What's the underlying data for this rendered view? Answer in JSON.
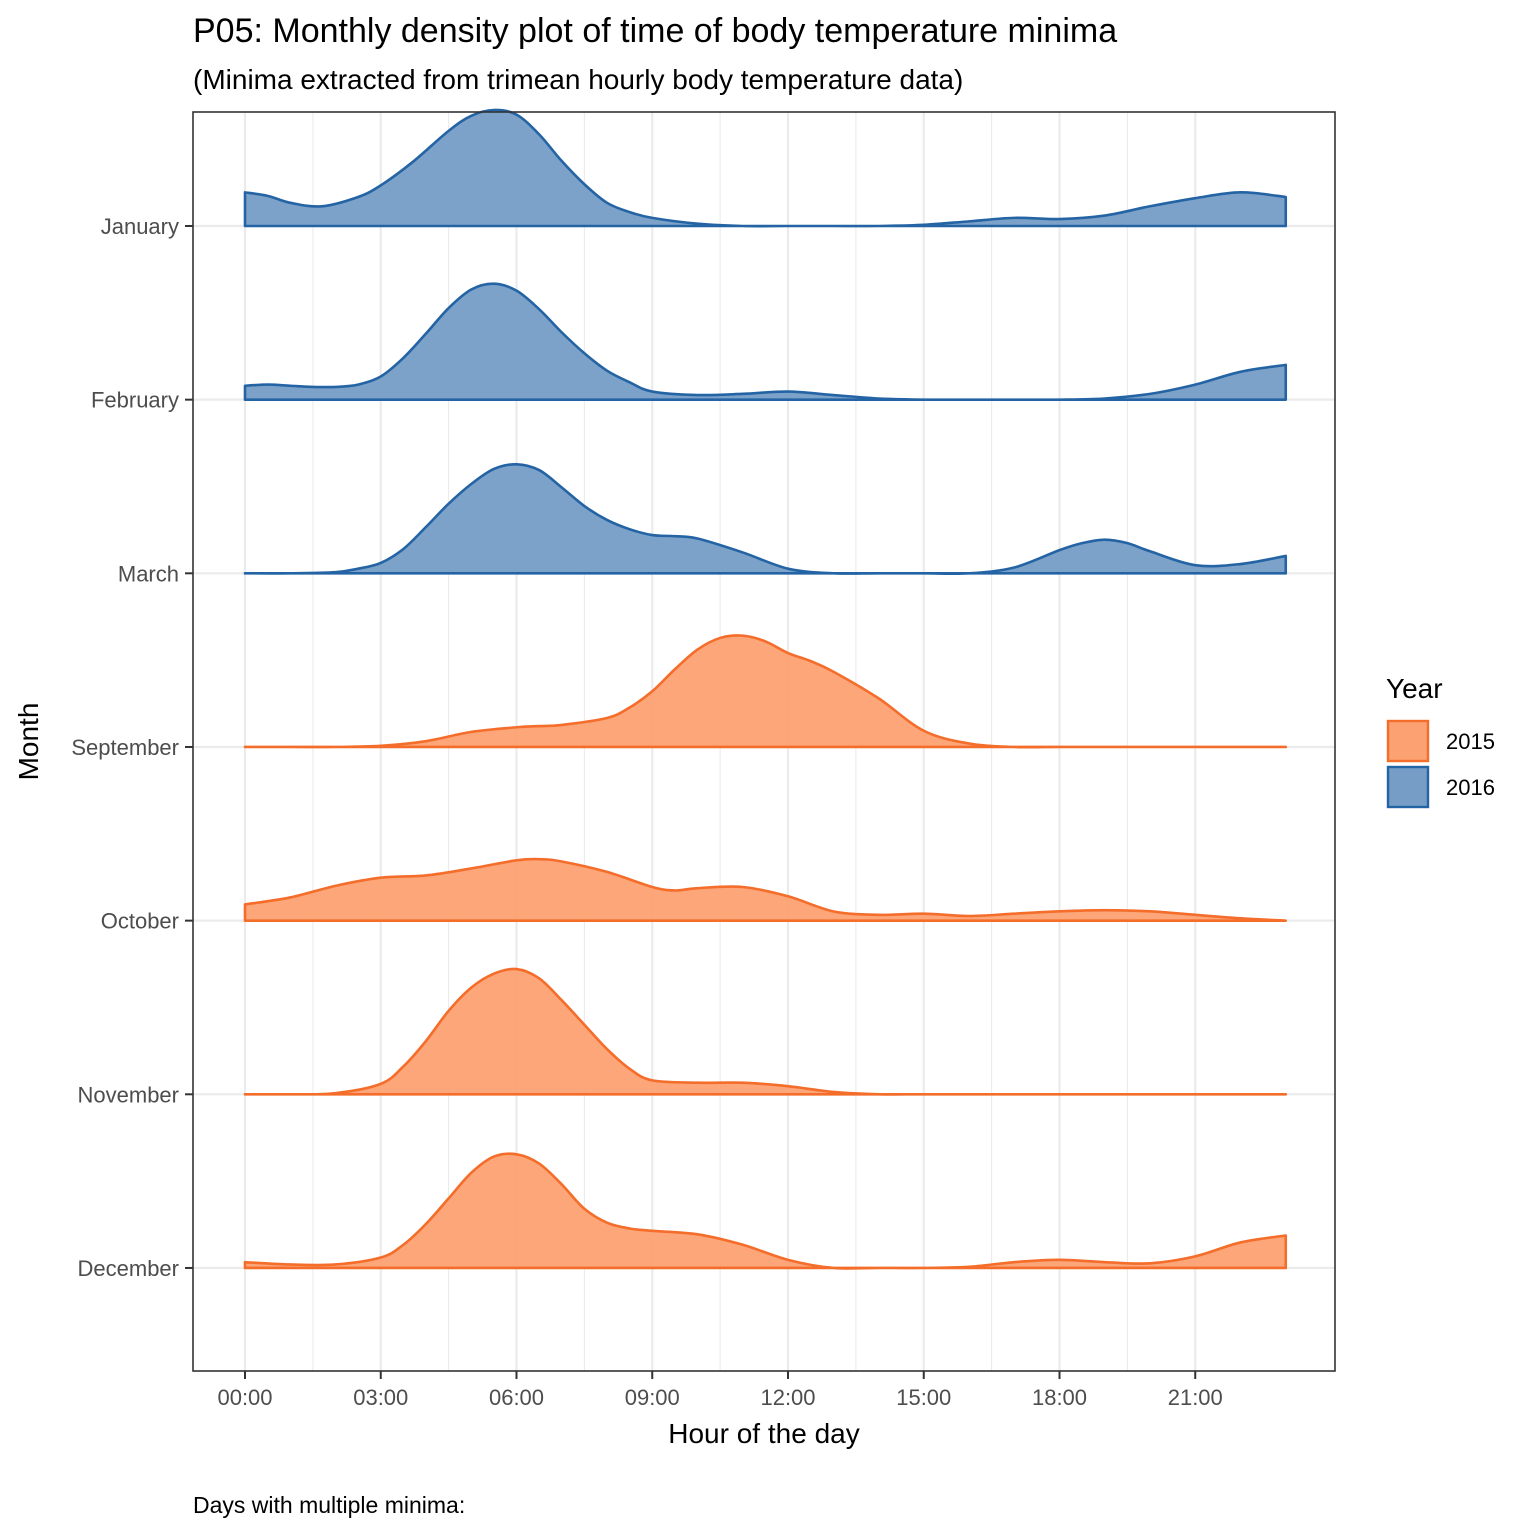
{
  "chart_data": {
    "type": "ridgeline-density",
    "title": "P05: Monthly density plot of time of body temperature minima",
    "subtitle": "(Minima extracted from trimean hourly body temperature data)",
    "caption": "Days with multiple minima:",
    "xlabel": "Hour of the day",
    "ylabel": "Month",
    "x_unit": "hour",
    "xlim": [
      -1.9,
      24.4
    ],
    "x_ticks": [
      {
        "value": 0,
        "label": "00:00"
      },
      {
        "value": 3,
        "label": "03:00"
      },
      {
        "value": 6,
        "label": "06:00"
      },
      {
        "value": 9,
        "label": "09:00"
      },
      {
        "value": 12,
        "label": "12:00"
      },
      {
        "value": 15,
        "label": "15:00"
      },
      {
        "value": 18,
        "label": "18:00"
      },
      {
        "value": 21,
        "label": "21:00"
      }
    ],
    "grid": true,
    "legend": {
      "title": "Year",
      "position": "right",
      "entries": [
        {
          "label": "2015",
          "fill": "#FCA172",
          "stroke": "#F46D2A"
        },
        {
          "label": "2016",
          "fill": "#759DC6",
          "stroke": "#2464A4"
        }
      ]
    },
    "categories": [
      "January",
      "February",
      "March",
      "September",
      "October",
      "November",
      "December"
    ],
    "series": [
      {
        "month": "January",
        "year": "2016",
        "x": [
          0,
          0.5,
          1,
          1.7,
          2.5,
          3,
          3.7,
          4.5,
          5,
          5.5,
          6,
          6.5,
          7,
          7.5,
          8,
          8.5,
          9,
          10,
          11,
          12,
          13,
          14,
          15,
          16,
          17,
          18,
          19,
          20,
          21,
          22,
          23
        ],
        "y": [
          0.29,
          0.26,
          0.2,
          0.17,
          0.25,
          0.35,
          0.55,
          0.82,
          0.95,
          1.0,
          0.96,
          0.79,
          0.56,
          0.36,
          0.2,
          0.12,
          0.07,
          0.02,
          0.0,
          0.0,
          0.0,
          0.0,
          0.01,
          0.04,
          0.07,
          0.06,
          0.09,
          0.17,
          0.24,
          0.29,
          0.25
        ]
      },
      {
        "month": "February",
        "year": "2016",
        "x": [
          0,
          0.5,
          1,
          1.5,
          2,
          2.5,
          3,
          3.5,
          4,
          4.5,
          5,
          5.5,
          6,
          6.5,
          7,
          7.5,
          8,
          8.5,
          9,
          10,
          11,
          12,
          13,
          14,
          15,
          16,
          17,
          18,
          19,
          20,
          21,
          22,
          23
        ],
        "y": [
          0.12,
          0.13,
          0.12,
          0.11,
          0.11,
          0.13,
          0.2,
          0.36,
          0.57,
          0.79,
          0.95,
          1.0,
          0.94,
          0.78,
          0.58,
          0.4,
          0.25,
          0.15,
          0.07,
          0.04,
          0.05,
          0.07,
          0.04,
          0.01,
          0.0,
          0.0,
          0.0,
          0.0,
          0.01,
          0.05,
          0.13,
          0.24,
          0.3
        ]
      },
      {
        "month": "March",
        "year": "2016",
        "x": [
          0,
          1,
          2,
          2.5,
          3,
          3.5,
          4,
          4.5,
          5,
          5.5,
          6,
          6.5,
          7,
          7.5,
          8,
          8.5,
          9,
          9.5,
          10,
          11,
          12,
          13,
          14,
          15,
          16,
          17,
          18,
          18.5,
          19,
          19.5,
          20,
          21,
          22,
          23
        ],
        "y": [
          0.0,
          0.0,
          0.01,
          0.04,
          0.09,
          0.21,
          0.4,
          0.6,
          0.77,
          0.9,
          0.94,
          0.89,
          0.74,
          0.58,
          0.46,
          0.38,
          0.33,
          0.32,
          0.3,
          0.18,
          0.04,
          0.0,
          0.0,
          0.0,
          0.0,
          0.05,
          0.2,
          0.26,
          0.29,
          0.26,
          0.19,
          0.07,
          0.08,
          0.15
        ]
      },
      {
        "month": "September",
        "year": "2015",
        "x": [
          0,
          1,
          2,
          3,
          4,
          5,
          6,
          6.5,
          7,
          8,
          8.5,
          9,
          9.5,
          10,
          10.5,
          11,
          11.5,
          12,
          12.5,
          13,
          14,
          15,
          16,
          17,
          18,
          19,
          20,
          21,
          22,
          23
        ],
        "y": [
          0.0,
          0.0,
          0.0,
          0.01,
          0.05,
          0.13,
          0.17,
          0.18,
          0.19,
          0.25,
          0.34,
          0.48,
          0.67,
          0.84,
          0.94,
          0.96,
          0.91,
          0.81,
          0.74,
          0.65,
          0.42,
          0.14,
          0.03,
          0.0,
          0.0,
          0.0,
          0.0,
          0.0,
          0.0,
          0.0
        ]
      },
      {
        "month": "October",
        "year": "2015",
        "x": [
          0,
          1,
          2,
          3,
          4,
          5,
          6,
          6.5,
          7,
          8,
          9,
          9.5,
          10,
          11,
          12,
          13,
          14,
          15,
          16,
          17,
          18,
          19,
          20,
          21,
          22,
          23
        ],
        "y": [
          0.14,
          0.2,
          0.3,
          0.37,
          0.39,
          0.45,
          0.52,
          0.53,
          0.51,
          0.42,
          0.29,
          0.26,
          0.28,
          0.29,
          0.21,
          0.08,
          0.05,
          0.06,
          0.04,
          0.06,
          0.08,
          0.09,
          0.08,
          0.05,
          0.02,
          0.0
        ]
      },
      {
        "month": "November",
        "year": "2015",
        "x": [
          0,
          1,
          2,
          3,
          3.5,
          4,
          4.5,
          5,
          5.5,
          6,
          6.5,
          7,
          7.5,
          8,
          8.5,
          9,
          10,
          11,
          12,
          13,
          14,
          15,
          16,
          17,
          18,
          19,
          20,
          21,
          22,
          23
        ],
        "y": [
          0.0,
          0.0,
          0.01,
          0.09,
          0.24,
          0.46,
          0.72,
          0.92,
          1.04,
          1.08,
          1.0,
          0.81,
          0.6,
          0.39,
          0.22,
          0.12,
          0.1,
          0.1,
          0.07,
          0.02,
          0.0,
          0.0,
          0.0,
          0.0,
          0.0,
          0.0,
          0.0,
          0.0,
          0.0,
          0.0
        ]
      },
      {
        "month": "December",
        "year": "2015",
        "x": [
          0,
          1,
          2,
          3,
          3.5,
          4,
          4.5,
          5,
          5.5,
          6,
          6.5,
          7,
          7.5,
          8,
          8.5,
          9,
          10,
          11,
          12,
          13,
          14,
          15,
          16,
          17,
          18,
          19,
          20,
          21,
          22,
          23
        ],
        "y": [
          0.05,
          0.03,
          0.03,
          0.09,
          0.2,
          0.38,
          0.6,
          0.82,
          0.96,
          0.98,
          0.9,
          0.72,
          0.51,
          0.39,
          0.34,
          0.32,
          0.29,
          0.2,
          0.07,
          0.0,
          0.0,
          0.0,
          0.01,
          0.05,
          0.07,
          0.05,
          0.04,
          0.1,
          0.22,
          0.28
        ]
      }
    ],
    "colors": {
      "2015_fill": "#FCA172",
      "2015_stroke": "#F46D2A",
      "2016_fill": "#759DC6",
      "2016_stroke": "#2464A4",
      "grid": "#EBEBEB",
      "panel_border": "#333333"
    }
  }
}
